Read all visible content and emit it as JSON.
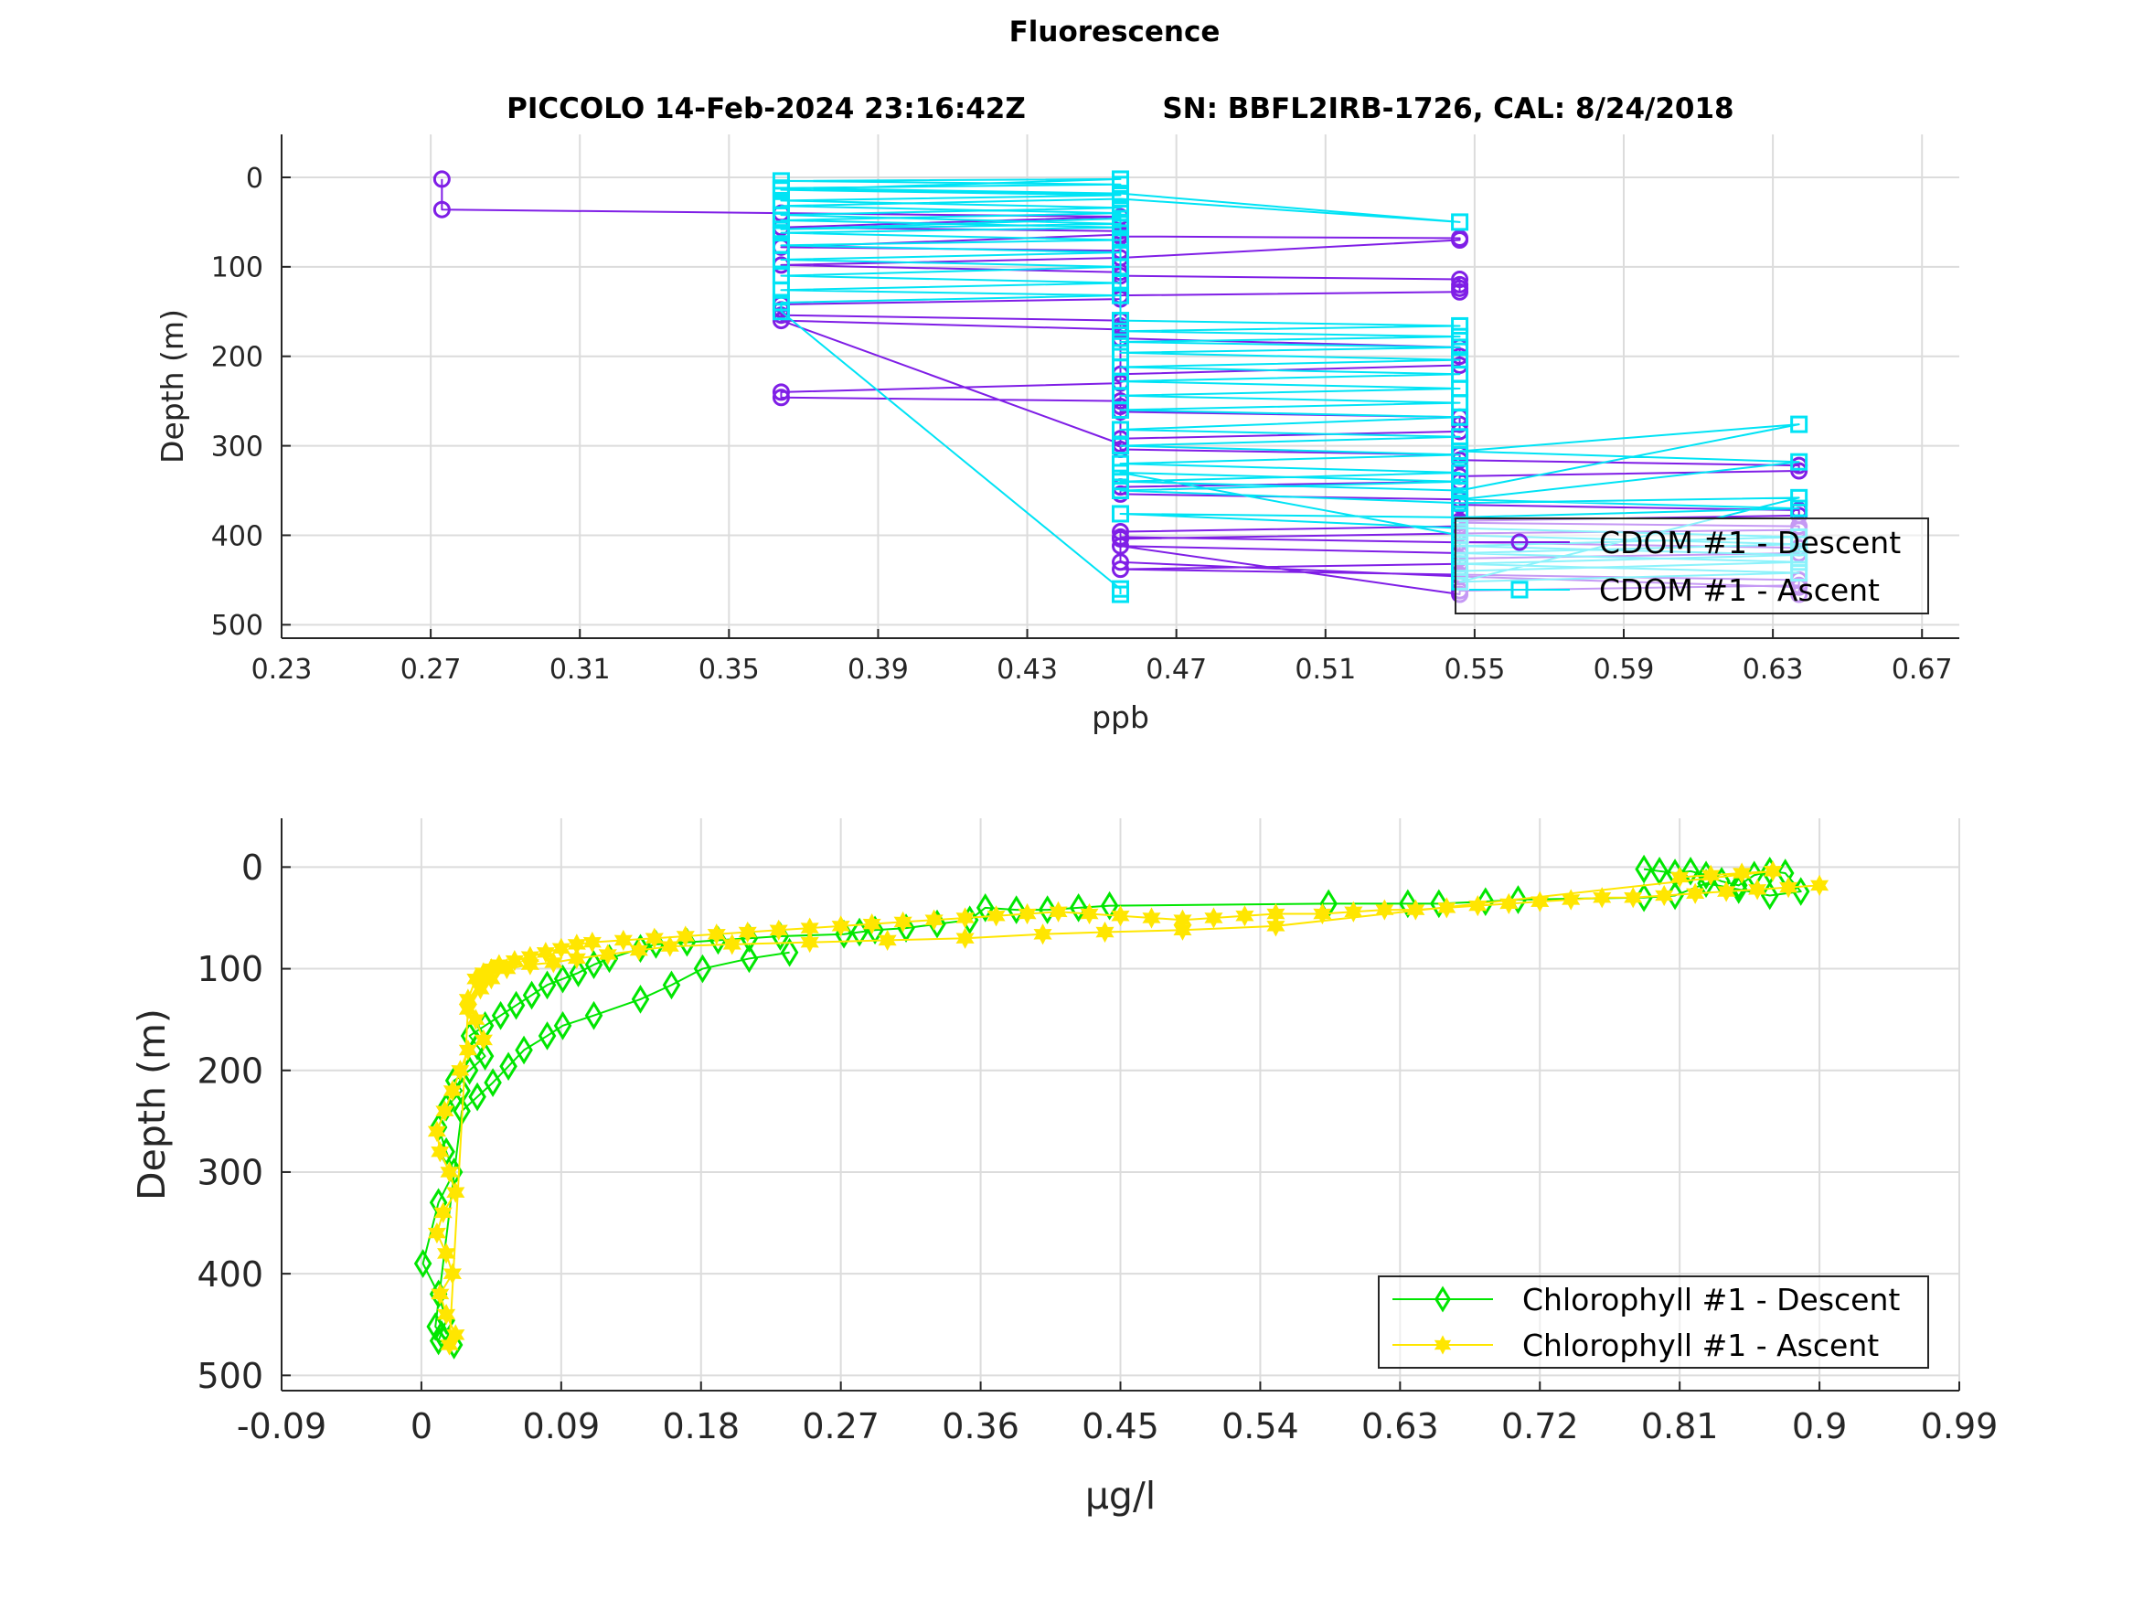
{
  "figure": {
    "title": "Fluorescence",
    "subtitle_left": "PICCOLO 14-Feb-2024 23:16:42Z",
    "subtitle_right": "SN: BBFL2IRB-1726, CAL: 8/24/2018"
  },
  "chart_data": [
    {
      "type": "line",
      "xlabel": "ppb",
      "ylabel": "Depth (m)",
      "xlim": [
        0.23,
        0.68
      ],
      "ylim": [
        -48,
        515
      ],
      "y_reversed": true,
      "grid": true,
      "xticks": [
        0.23,
        0.27,
        0.31,
        0.35,
        0.39,
        0.43,
        0.47,
        0.51,
        0.55,
        0.59,
        0.63,
        0.67
      ],
      "xtick_labels": [
        "0.23",
        "0.27",
        "0.31",
        "0.35",
        "0.39",
        "0.43",
        "0.47",
        "0.51",
        "0.55",
        "0.59",
        "0.63",
        "0.67"
      ],
      "yticks": [
        0,
        100,
        200,
        300,
        400,
        500
      ],
      "ytick_labels": [
        "0",
        "100",
        "200",
        "300",
        "400",
        "500"
      ],
      "legend_position": "bottom-right",
      "series": [
        {
          "name": "CDOM #1 - Descent",
          "color": "#7f1ee6",
          "marker": "circle",
          "x": [
            0.273,
            0.273,
            0.364,
            0.455,
            0.364,
            0.455,
            0.455,
            0.364,
            0.455,
            0.455,
            0.546,
            0.546,
            0.455,
            0.364,
            0.455,
            0.455,
            0.546,
            0.546,
            0.546,
            0.546,
            0.455,
            0.455,
            0.364,
            0.364,
            0.364,
            0.455,
            0.455,
            0.455,
            0.455,
            0.546,
            0.546,
            0.546,
            0.455,
            0.455,
            0.364,
            0.364,
            0.455,
            0.455,
            0.455,
            0.546,
            0.546,
            0.546,
            0.455,
            0.455,
            0.364,
            0.455,
            0.455,
            0.546,
            0.546,
            0.637,
            0.637,
            0.546,
            0.546,
            0.455,
            0.455,
            0.546,
            0.546,
            0.637,
            0.637,
            0.546,
            0.546,
            0.455,
            0.455,
            0.546,
            0.637,
            0.637,
            0.546,
            0.546,
            0.455,
            0.546,
            0.637,
            0.637,
            0.546,
            0.546,
            0.455,
            0.546,
            0.546,
            0.637,
            0.637,
            0.546,
            0.455,
            0.455,
            0.546,
            0.637,
            0.637
          ],
          "y": [
            2,
            36,
            40,
            44,
            56,
            60,
            64,
            78,
            82,
            66,
            68,
            70,
            90,
            98,
            106,
            110,
            114,
            120,
            124,
            128,
            132,
            136,
            142,
            148,
            154,
            160,
            166,
            172,
            180,
            190,
            200,
            210,
            220,
            230,
            240,
            246,
            250,
            256,
            262,
            268,
            276,
            284,
            292,
            298,
            160,
            170,
            304,
            310,
            316,
            322,
            328,
            334,
            340,
            346,
            354,
            360,
            366,
            372,
            378,
            384,
            390,
            396,
            402,
            408,
            414,
            420,
            426,
            432,
            438,
            444,
            450,
            456,
            462,
            466,
            412,
            420,
            386,
            390,
            394,
            398,
            404,
            430,
            446,
            458,
            466
          ]
        },
        {
          "name": "CDOM #1 - Ascent",
          "color": "#00e3f5",
          "marker": "square",
          "x": [
            0.455,
            0.455,
            0.364,
            0.364,
            0.455,
            0.364,
            0.455,
            0.364,
            0.455,
            0.364,
            0.455,
            0.364,
            0.455,
            0.364,
            0.455,
            0.364,
            0.455,
            0.364,
            0.455,
            0.546,
            0.455,
            0.364,
            0.455,
            0.364,
            0.455,
            0.364,
            0.455,
            0.364,
            0.455,
            0.364,
            0.455,
            0.364,
            0.455,
            0.455,
            0.546,
            0.455,
            0.546,
            0.455,
            0.546,
            0.455,
            0.546,
            0.455,
            0.546,
            0.455,
            0.546,
            0.455,
            0.546,
            0.455,
            0.546,
            0.455,
            0.546,
            0.455,
            0.546,
            0.455,
            0.546,
            0.455,
            0.546,
            0.637,
            0.546,
            0.637,
            0.546,
            0.637,
            0.546,
            0.455,
            0.546,
            0.637,
            0.546,
            0.637,
            0.546,
            0.637,
            0.546,
            0.637,
            0.546,
            0.455,
            0.546,
            0.455,
            0.546,
            0.637,
            0.546,
            0.637,
            0.546
          ],
          "y": [
            466,
            460,
            150,
            140,
            132,
            126,
            118,
            110,
            100,
            92,
            84,
            76,
            70,
            62,
            56,
            48,
            40,
            32,
            24,
            50,
            18,
            12,
            8,
            4,
            2,
            14,
            20,
            26,
            34,
            42,
            52,
            58,
            46,
            160,
            166,
            172,
            178,
            184,
            190,
            196,
            204,
            212,
            220,
            228,
            236,
            244,
            252,
            260,
            268,
            282,
            290,
            300,
            310,
            320,
            330,
            340,
            350,
            276,
            306,
            318,
            360,
            370,
            380,
            376,
            392,
            402,
            412,
            422,
            432,
            442,
            452,
            358,
            364,
            350,
            340,
            330,
            400,
            410,
            420,
            430,
            440
          ]
        }
      ]
    },
    {
      "type": "line",
      "xlabel": "μg/l",
      "ylabel": "Depth (m)",
      "xlim": [
        -0.09,
        0.99
      ],
      "ylim": [
        -48,
        515
      ],
      "y_reversed": true,
      "grid": true,
      "xticks": [
        -0.09,
        0,
        0.09,
        0.18,
        0.27,
        0.36,
        0.45,
        0.54,
        0.63,
        0.72,
        0.81,
        0.9,
        0.99
      ],
      "xtick_labels": [
        "-0.09",
        "0",
        "0.09",
        "0.18",
        "0.27",
        "0.36",
        "0.45",
        "0.54",
        "0.63",
        "0.72",
        "0.81",
        "0.9",
        "0.99"
      ],
      "yticks": [
        0,
        100,
        200,
        300,
        400,
        500
      ],
      "ytick_labels": [
        "0",
        "100",
        "200",
        "300",
        "400",
        "500"
      ],
      "legend_position": "bottom-right",
      "series": [
        {
          "name": "Chlorophyll #1 - Descent",
          "color": "#00e600",
          "marker": "diamond",
          "x": [
            0.787,
            0.797,
            0.807,
            0.817,
            0.827,
            0.837,
            0.848,
            0.858,
            0.868,
            0.878,
            0.888,
            0.868,
            0.848,
            0.827,
            0.807,
            0.787,
            0.706,
            0.685,
            0.655,
            0.635,
            0.584,
            0.443,
            0.423,
            0.403,
            0.383,
            0.363,
            0.353,
            0.332,
            0.312,
            0.292,
            0.282,
            0.272,
            0.231,
            0.211,
            0.191,
            0.171,
            0.151,
            0.141,
            0.121,
            0.111,
            0.101,
            0.091,
            0.081,
            0.071,
            0.061,
            0.051,
            0.041,
            0.031,
            0.036,
            0.041,
            0.031,
            0.021,
            0.026,
            0.016,
            0.011,
            0.016,
            0.021,
            0.011,
            0.001,
            0.011,
            0.016,
            0.011,
            0.021,
            0.013,
            0.009,
            0.026,
            0.036,
            0.046,
            0.056,
            0.066,
            0.081,
            0.091,
            0.111,
            0.141,
            0.161,
            0.181,
            0.211,
            0.237
          ],
          "y": [
            2,
            4,
            6,
            4,
            8,
            14,
            18,
            8,
            4,
            6,
            24,
            28,
            22,
            16,
            28,
            30,
            32,
            34,
            36,
            36,
            36,
            38,
            40,
            42,
            42,
            40,
            52,
            56,
            60,
            62,
            64,
            66,
            68,
            70,
            72,
            74,
            76,
            80,
            90,
            96,
            104,
            110,
            116,
            126,
            136,
            146,
            156,
            166,
            176,
            186,
            200,
            210,
            220,
            236,
            256,
            280,
            300,
            330,
            390,
            420,
            446,
            466,
            470,
            460,
            452,
            240,
            226,
            212,
            196,
            180,
            166,
            156,
            146,
            130,
            116,
            100,
            90,
            84
          ]
        },
        {
          "name": "Chlorophyll #1 - Ascent",
          "color": "#ffe600",
          "marker": "hexagram",
          "x": [
            0.9,
            0.88,
            0.86,
            0.84,
            0.82,
            0.8,
            0.78,
            0.76,
            0.74,
            0.72,
            0.7,
            0.68,
            0.66,
            0.64,
            0.62,
            0.6,
            0.58,
            0.55,
            0.53,
            0.51,
            0.49,
            0.47,
            0.45,
            0.43,
            0.41,
            0.39,
            0.37,
            0.35,
            0.33,
            0.31,
            0.29,
            0.27,
            0.25,
            0.23,
            0.21,
            0.19,
            0.17,
            0.15,
            0.13,
            0.11,
            0.1,
            0.09,
            0.08,
            0.07,
            0.06,
            0.05,
            0.045,
            0.04,
            0.035,
            0.03,
            0.035,
            0.04,
            0.03,
            0.025,
            0.02,
            0.015,
            0.01,
            0.012,
            0.018,
            0.022,
            0.014,
            0.01,
            0.016,
            0.02,
            0.012,
            0.016,
            0.022,
            0.018,
            0.03,
            0.038,
            0.045,
            0.055,
            0.07,
            0.085,
            0.1,
            0.12,
            0.14,
            0.16,
            0.2,
            0.25,
            0.3,
            0.35,
            0.4,
            0.44,
            0.49,
            0.55,
            0.87,
            0.85,
            0.83,
            0.81
          ],
          "y": [
            18,
            20,
            22,
            24,
            26,
            28,
            30,
            30,
            32,
            34,
            36,
            38,
            40,
            42,
            42,
            44,
            46,
            46,
            48,
            50,
            52,
            50,
            48,
            46,
            44,
            46,
            48,
            50,
            52,
            54,
            56,
            58,
            60,
            62,
            64,
            66,
            68,
            70,
            72,
            74,
            76,
            80,
            84,
            88,
            92,
            96,
            100,
            104,
            110,
            130,
            150,
            170,
            180,
            200,
            220,
            240,
            260,
            280,
            300,
            320,
            340,
            360,
            380,
            400,
            420,
            440,
            460,
            470,
            140,
            120,
            110,
            100,
            96,
            94,
            90,
            86,
            82,
            78,
            76,
            74,
            72,
            70,
            66,
            64,
            62,
            58,
            4,
            6,
            8,
            10
          ]
        }
      ]
    }
  ]
}
